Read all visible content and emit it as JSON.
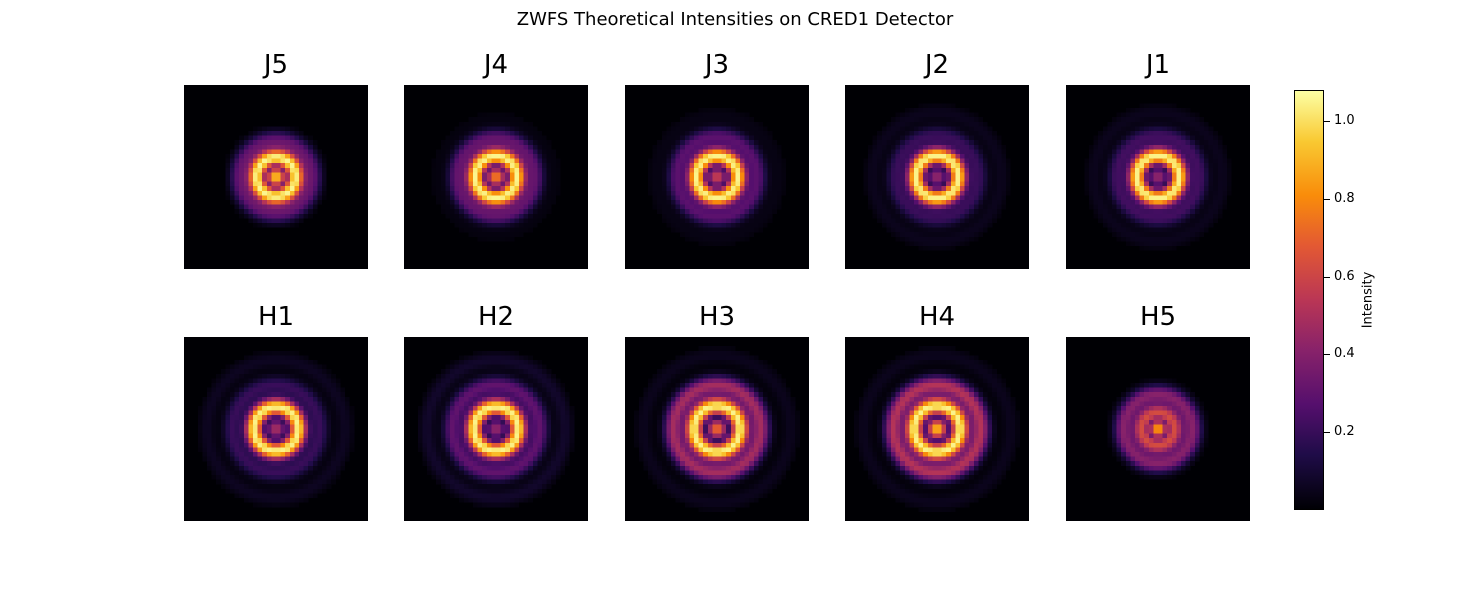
{
  "chart_data": {
    "type": "heatmap",
    "title": "ZWFS Theoretical Intensities on CRED1 Detector",
    "colormap": "inferno",
    "colorbar": {
      "label": "Intensity",
      "range": [
        0.0,
        1.08
      ],
      "ticks": [
        0.2,
        0.4,
        0.6,
        0.8,
        1.0
      ],
      "tick_labels": [
        "0.2",
        "0.4",
        "0.6",
        "0.8",
        "1.0"
      ]
    },
    "panels": [
      {
        "label": "J5",
        "row": 0,
        "center": 0.97,
        "ring1": 1.05,
        "ring1_r": 4.2,
        "ring2": 0.3,
        "ring2_r": 8.0,
        "ring3": 0.0,
        "ring3_r": 12.5,
        "spot": 0.0
      },
      {
        "label": "J4",
        "row": 0,
        "center": 0.8,
        "ring1": 1.05,
        "ring1_r": 4.5,
        "ring2": 0.3,
        "ring2_r": 8.5,
        "ring3": 0.02,
        "ring3_r": 13.0,
        "spot": 0.0
      },
      {
        "label": "J3",
        "row": 0,
        "center": 0.6,
        "ring1": 1.05,
        "ring1_r": 4.5,
        "ring2": 0.28,
        "ring2_r": 8.8,
        "ring3": 0.03,
        "ring3_r": 13.5,
        "spot": 0.0
      },
      {
        "label": "J2",
        "row": 0,
        "center": 0.45,
        "ring1": 1.05,
        "ring1_r": 4.6,
        "ring2": 0.2,
        "ring2_r": 9.0,
        "ring3": 0.05,
        "ring3_r": 14.0,
        "spot": 0.0
      },
      {
        "label": "J1",
        "row": 0,
        "center": 0.45,
        "ring1": 1.05,
        "ring1_r": 4.6,
        "ring2": 0.22,
        "ring2_r": 9.0,
        "ring3": 0.05,
        "ring3_r": 14.0,
        "spot": 0.0
      },
      {
        "label": "H1",
        "row": 1,
        "center": 0.5,
        "ring1": 1.05,
        "ring1_r": 4.8,
        "ring2": 0.2,
        "ring2_r": 9.5,
        "ring3": 0.06,
        "ring3_r": 15.0,
        "spot": 0.0
      },
      {
        "label": "H2",
        "row": 1,
        "center": 0.45,
        "ring1": 1.05,
        "ring1_r": 4.8,
        "ring2": 0.3,
        "ring2_r": 9.5,
        "ring3": 0.08,
        "ring3_r": 15.0,
        "spot": 0.0
      },
      {
        "label": "H3",
        "row": 1,
        "center": 0.75,
        "ring1": 1.05,
        "ring1_r": 5.0,
        "ring2": 0.48,
        "ring2_r": 9.5,
        "ring3": 0.05,
        "ring3_r": 16.0,
        "spot": 0.0
      },
      {
        "label": "H4",
        "row": 1,
        "center": 0.95,
        "ring1": 1.05,
        "ring1_r": 5.0,
        "ring2": 0.52,
        "ring2_r": 9.5,
        "ring3": 0.05,
        "ring3_r": 16.0,
        "spot": 0.0
      },
      {
        "label": "H5",
        "row": 1,
        "center": 0.82,
        "ring1": 0.62,
        "ring1_r": 3.5,
        "ring2": 0.4,
        "ring2_r": 7.5,
        "ring3": 0.0,
        "ring3_r": 14.0,
        "spot": 1.08
      }
    ]
  }
}
